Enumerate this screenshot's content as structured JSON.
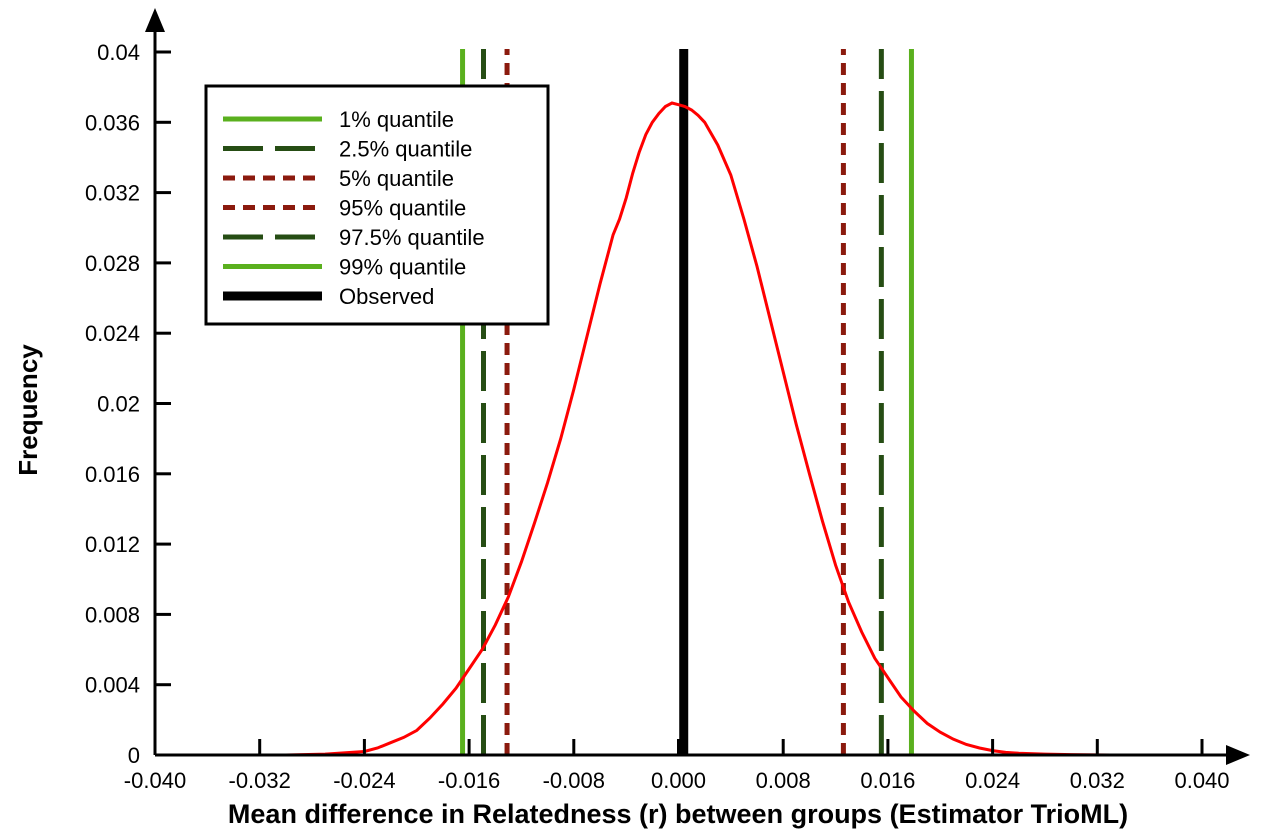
{
  "chart_data": {
    "type": "line",
    "title": "",
    "xlabel": "Mean difference in Relatedness (r) between groups (Estimator TrioML)",
    "ylabel": "Frequency",
    "xlim": [
      -0.04,
      0.04
    ],
    "ylim": [
      0,
      0.04
    ],
    "xticks": [
      -0.04,
      -0.032,
      -0.024,
      -0.016,
      -0.008,
      0.0,
      0.008,
      0.016,
      0.024,
      0.032,
      0.04
    ],
    "xtick_labels": [
      "-0.040",
      "-0.032",
      "-0.024",
      "-0.016",
      "-0.008",
      "0.000",
      "0.008",
      "0.016",
      "0.024",
      "0.032",
      "0.040"
    ],
    "yticks": [
      0,
      0.004,
      0.008,
      0.012,
      0.016,
      0.02,
      0.024,
      0.028,
      0.032,
      0.036,
      0.04
    ],
    "ytick_labels": [
      "0",
      "0.004",
      "0.008",
      "0.012",
      "0.016",
      "0.02",
      "0.024",
      "0.028",
      "0.032",
      "0.036",
      "0.04"
    ],
    "grid": false,
    "legend_position": "top-left",
    "curve": {
      "color": "#ff0000",
      "x": [
        -0.04,
        -0.03,
        -0.027,
        -0.025,
        -0.024,
        -0.023,
        -0.022,
        -0.021,
        -0.02,
        -0.019,
        -0.018,
        -0.017,
        -0.016,
        -0.015,
        -0.014,
        -0.013,
        -0.012,
        -0.011,
        -0.01,
        -0.009,
        -0.008,
        -0.007,
        -0.006,
        -0.005,
        -0.0045,
        -0.004,
        -0.0035,
        -0.003,
        -0.0025,
        -0.002,
        -0.0015,
        -0.001,
        -0.0005,
        0.0,
        0.0005,
        0.001,
        0.0015,
        0.002,
        0.003,
        0.004,
        0.005,
        0.006,
        0.007,
        0.008,
        0.009,
        0.01,
        0.011,
        0.012,
        0.013,
        0.014,
        0.015,
        0.016,
        0.017,
        0.018,
        0.019,
        0.02,
        0.021,
        0.022,
        0.023,
        0.024,
        0.025,
        0.026,
        0.028,
        0.03,
        0.033,
        0.04
      ],
      "y": [
        0,
        0,
        5e-05,
        0.00015,
        0.0002,
        0.0004,
        0.0007,
        0.001,
        0.0014,
        0.0021,
        0.0029,
        0.0038,
        0.0049,
        0.006,
        0.0074,
        0.009,
        0.011,
        0.0132,
        0.0155,
        0.018,
        0.0208,
        0.0238,
        0.0268,
        0.0296,
        0.0305,
        0.0317,
        0.0331,
        0.0343,
        0.0353,
        0.036,
        0.0365,
        0.0369,
        0.0371,
        0.037,
        0.0369,
        0.0367,
        0.0364,
        0.036,
        0.0347,
        0.033,
        0.0305,
        0.0278,
        0.0248,
        0.0218,
        0.0188,
        0.016,
        0.0133,
        0.0108,
        0.0087,
        0.007,
        0.0055,
        0.0044,
        0.0033,
        0.0025,
        0.0018,
        0.0013,
        0.0009,
        0.0006,
        0.0004,
        0.00025,
        0.00015,
        0.0001,
        5e-05,
        2e-05,
        0,
        0
      ]
    },
    "reference_lines": [
      {
        "label": "1% quantile",
        "x": -0.0165,
        "color": "#5ab01e",
        "style": "solid"
      },
      {
        "label": "2.5% quantile",
        "x": -0.0149,
        "color": "#264d14",
        "style": "dashed"
      },
      {
        "label": "5% quantile",
        "x": -0.0131,
        "color": "#8b1a0e",
        "style": "dotted"
      },
      {
        "label": "95% quantile",
        "x": 0.0126,
        "color": "#8b1a0e",
        "style": "dotted"
      },
      {
        "label": "97.5% quantile",
        "x": 0.0155,
        "color": "#264d14",
        "style": "dashed"
      },
      {
        "label": "99% quantile",
        "x": 0.0178,
        "color": "#5ab01e",
        "style": "solid"
      },
      {
        "label": "Observed",
        "x": 0.0004,
        "color": "#000000",
        "style": "thick"
      }
    ]
  }
}
